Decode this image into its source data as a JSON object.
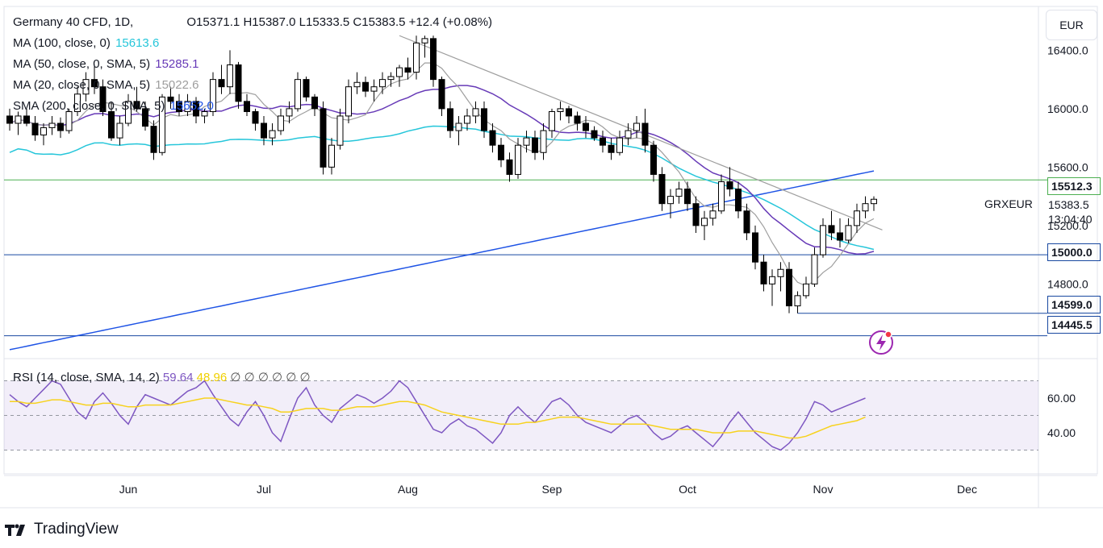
{
  "header": {
    "symbol": "Germany 40 CFD, 1D,",
    "ohlc": "O15371.1  H15387.0  L15333.5  C15383.5  +12.4 (+0.08%)"
  },
  "indicators": [
    {
      "label": "MA (100, close, 0)",
      "value": "15613.6",
      "color": "#26c6da"
    },
    {
      "label": "MA (50, close, 0, SMA, 5)",
      "value": "15285.1",
      "color": "#673ab7"
    },
    {
      "label": "MA (20, close, 0, SMA, 5)",
      "value": "15022.6",
      "color": "#9e9e9e"
    },
    {
      "label": "SMA (200, close, 0, SMA, 5)",
      "value": "15652.0",
      "color": "#1e53e5"
    }
  ],
  "rsi_legend": {
    "label": "RSI (14, close, SMA, 14, 2)",
    "rsi": "59.64",
    "rsi_ma": "48.96",
    "placeholders": "∅ ∅ ∅ ∅ ∅ ∅"
  },
  "currency": "EUR",
  "symbol_label": "GRXEUR",
  "current_price": "15383.5",
  "countdown": "13:04:40",
  "price_tags": [
    {
      "value": "15512.3",
      "bg": "#ffffff",
      "color": "#131722",
      "border": "#4caf50"
    },
    {
      "value": "15000.0",
      "bg": "#ffffff",
      "color": "#131722",
      "border": "#1848a0"
    },
    {
      "value": "14599.0",
      "bg": "#ffffff",
      "color": "#131722",
      "border": "#1848a0"
    },
    {
      "value": "14445.5",
      "bg": "#ffffff",
      "color": "#131722",
      "border": "#1848a0"
    }
  ],
  "brand": "TradingView",
  "chart_data": {
    "type": "candlestick",
    "price_axis_ticks": [
      "16400.0",
      "16000.0",
      "15600.0",
      "15200.0",
      "14800.0"
    ],
    "rsi_axis_ticks": [
      "60.00",
      "40.00"
    ],
    "time_axis_ticks": [
      "Jun",
      "Jul",
      "Aug",
      "Sep",
      "Oct",
      "Nov",
      "Dec"
    ],
    "ylim": [
      14300,
      16700
    ],
    "horizontal_levels": [
      15512.3,
      15000.0,
      14599.0,
      14445.5
    ],
    "candles": [
      [
        15950,
        16000,
        15850,
        15900
      ],
      [
        15900,
        15980,
        15820,
        15950
      ],
      [
        15950,
        16000,
        15880,
        15900
      ],
      [
        15900,
        15950,
        15780,
        15820
      ],
      [
        15820,
        15900,
        15750,
        15870
      ],
      [
        15870,
        15950,
        15820,
        15900
      ],
      [
        15900,
        15940,
        15800,
        15850
      ],
      [
        15850,
        16000,
        15830,
        15980
      ],
      [
        15980,
        16150,
        15950,
        16100
      ],
      [
        16100,
        16250,
        16050,
        16200
      ],
      [
        16200,
        16300,
        16100,
        16150
      ],
      [
        16150,
        16200,
        15950,
        15980
      ],
      [
        15980,
        16050,
        15780,
        15800
      ],
      [
        15800,
        15950,
        15750,
        15900
      ],
      [
        15900,
        16100,
        15880,
        16050
      ],
      [
        16050,
        16150,
        15980,
        16000
      ],
      [
        16000,
        16050,
        15850,
        15880
      ],
      [
        15880,
        15920,
        15650,
        15700
      ],
      [
        15700,
        16100,
        15680,
        16080
      ],
      [
        16080,
        16150,
        16000,
        16050
      ],
      [
        16050,
        16100,
        15950,
        15980
      ],
      [
        15980,
        16100,
        15950,
        16050
      ],
      [
        16050,
        16080,
        15900,
        15950
      ],
      [
        15950,
        16000,
        15900,
        15980
      ],
      [
        15980,
        16250,
        15950,
        16200
      ],
      [
        16200,
        16300,
        16100,
        16150
      ],
      [
        16150,
        16400,
        16100,
        16300
      ],
      [
        16300,
        16320,
        16000,
        16050
      ],
      [
        16050,
        16100,
        15950,
        15980
      ],
      [
        15980,
        16000,
        15850,
        15900
      ],
      [
        15900,
        15950,
        15750,
        15800
      ],
      [
        15800,
        15900,
        15750,
        15850
      ],
      [
        15850,
        16000,
        15820,
        15950
      ],
      [
        15950,
        16050,
        15900,
        16000
      ],
      [
        16000,
        16250,
        15980,
        16200
      ],
      [
        16200,
        16220,
        16050,
        16080
      ],
      [
        16080,
        16100,
        15950,
        16000
      ],
      [
        16000,
        16050,
        15550,
        15600
      ],
      [
        15600,
        15800,
        15550,
        15750
      ],
      [
        15750,
        16000,
        15720,
        15950
      ],
      [
        15950,
        16200,
        15900,
        16150
      ],
      [
        16150,
        16250,
        16100,
        16180
      ],
      [
        16180,
        16220,
        16080,
        16120
      ],
      [
        16120,
        16200,
        16050,
        16150
      ],
      [
        16150,
        16250,
        16100,
        16200
      ],
      [
        16200,
        16250,
        16150,
        16220
      ],
      [
        16220,
        16300,
        16150,
        16280
      ],
      [
        16280,
        16350,
        16200,
        16250
      ],
      [
        16250,
        16500,
        16200,
        16450
      ],
      [
        16450,
        16500,
        16350,
        16480
      ],
      [
        16480,
        16500,
        16150,
        16200
      ],
      [
        16200,
        16220,
        15950,
        16000
      ],
      [
        16000,
        16050,
        15800,
        15850
      ],
      [
        15850,
        15950,
        15750,
        15900
      ],
      [
        15900,
        16000,
        15850,
        15950
      ],
      [
        15950,
        16050,
        15900,
        16000
      ],
      [
        16000,
        16050,
        15800,
        15850
      ],
      [
        15850,
        15900,
        15700,
        15750
      ],
      [
        15750,
        15800,
        15600,
        15650
      ],
      [
        15650,
        15700,
        15500,
        15550
      ],
      [
        15550,
        15800,
        15520,
        15750
      ],
      [
        15750,
        15850,
        15700,
        15800
      ],
      [
        15800,
        15850,
        15650,
        15700
      ],
      [
        15700,
        15900,
        15650,
        15850
      ],
      [
        15850,
        16000,
        15800,
        15980
      ],
      [
        15980,
        16050,
        15920,
        16000
      ],
      [
        16000,
        16020,
        15900,
        15950
      ],
      [
        15950,
        15980,
        15850,
        15900
      ],
      [
        15900,
        15950,
        15800,
        15850
      ],
      [
        15850,
        15880,
        15780,
        15800
      ],
      [
        15800,
        15850,
        15700,
        15750
      ],
      [
        15750,
        15800,
        15650,
        15700
      ],
      [
        15700,
        15850,
        15680,
        15800
      ],
      [
        15800,
        15900,
        15750,
        15850
      ],
      [
        15850,
        15950,
        15800,
        15900
      ],
      [
        15900,
        16000,
        15700,
        15750
      ],
      [
        15750,
        15780,
        15500,
        15550
      ],
      [
        15550,
        15600,
        15300,
        15350
      ],
      [
        15350,
        15450,
        15250,
        15400
      ],
      [
        15400,
        15500,
        15350,
        15450
      ],
      [
        15450,
        15500,
        15300,
        15350
      ],
      [
        15350,
        15400,
        15150,
        15200
      ],
      [
        15200,
        15300,
        15100,
        15250
      ],
      [
        15250,
        15350,
        15200,
        15300
      ],
      [
        15300,
        15550,
        15280,
        15500
      ],
      [
        15500,
        15600,
        15400,
        15450
      ],
      [
        15450,
        15500,
        15250,
        15300
      ],
      [
        15300,
        15350,
        15100,
        15150
      ],
      [
        15150,
        15200,
        14900,
        14950
      ],
      [
        14950,
        15000,
        14750,
        14800
      ],
      [
        14800,
        14900,
        14650,
        14850
      ],
      [
        14850,
        14950,
        14750,
        14900
      ],
      [
        14900,
        14950,
        14600,
        14650
      ],
      [
        14650,
        14750,
        14600,
        14720
      ],
      [
        14720,
        14850,
        14700,
        14800
      ],
      [
        14800,
        15050,
        14780,
        15000
      ],
      [
        15000,
        15250,
        14980,
        15200
      ],
      [
        15200,
        15300,
        15100,
        15150
      ],
      [
        15150,
        15250,
        15050,
        15100
      ],
      [
        15100,
        15250,
        15080,
        15200
      ],
      [
        15200,
        15350,
        15150,
        15300
      ],
      [
        15300,
        15400,
        15250,
        15350
      ],
      [
        15350,
        15400,
        15300,
        15380
      ]
    ],
    "rsi_values": [
      62,
      58,
      55,
      60,
      65,
      70,
      68,
      60,
      52,
      48,
      58,
      63,
      57,
      50,
      45,
      55,
      62,
      60,
      58,
      56,
      60,
      64,
      66,
      70,
      62,
      55,
      48,
      44,
      52,
      58,
      50,
      40,
      35,
      48,
      60,
      66,
      56,
      50,
      46,
      54,
      58,
      62,
      60,
      57,
      60,
      64,
      70,
      66,
      58,
      50,
      42,
      40,
      45,
      48,
      44,
      42,
      38,
      34,
      40,
      50,
      55,
      50,
      46,
      52,
      58,
      60,
      56,
      50,
      46,
      44,
      42,
      40,
      44,
      48,
      50,
      46,
      40,
      36,
      38,
      42,
      44,
      40,
      36,
      32,
      38,
      46,
      52,
      46,
      40,
      36,
      32,
      30,
      34,
      40,
      48,
      58,
      56,
      52,
      54,
      56,
      58,
      60
    ],
    "rsi_ma_values": [
      58,
      58,
      57,
      57,
      58,
      59,
      59,
      58,
      57,
      56,
      56,
      57,
      57,
      56,
      55,
      55,
      56,
      56,
      56,
      56,
      57,
      58,
      59,
      60,
      60,
      59,
      58,
      57,
      56,
      56,
      55,
      54,
      52,
      52,
      53,
      54,
      54,
      54,
      53,
      53,
      54,
      55,
      55,
      55,
      56,
      57,
      58,
      58,
      57,
      56,
      54,
      52,
      51,
      50,
      49,
      48,
      47,
      46,
      45,
      45,
      45,
      46,
      46,
      47,
      48,
      49,
      49,
      49,
      48,
      47,
      46,
      45,
      45,
      45,
      45,
      45,
      44,
      43,
      42,
      42,
      42,
      42,
      41,
      40,
      40,
      40,
      41,
      41,
      41,
      40,
      39,
      38,
      37,
      37,
      38,
      40,
      42,
      44,
      45,
      46,
      47,
      49
    ]
  }
}
